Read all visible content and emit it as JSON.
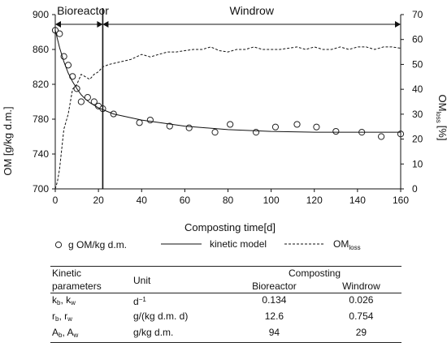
{
  "chart_data": {
    "type": "line",
    "xlabel": "Composting time[d]",
    "ylabel": "OM [g/kg d.m.]",
    "y2label_main": "OM",
    "y2label_sub": "loss",
    "y2label_unit": "[%]",
    "xlim": [
      0,
      160
    ],
    "ylim": [
      700,
      900
    ],
    "y2lim": [
      0,
      70
    ],
    "xticks": [
      "0",
      "20",
      "40",
      "60",
      "80",
      "100",
      "120",
      "140",
      "160"
    ],
    "yticks": [
      "700",
      "740",
      "780",
      "820",
      "860",
      "900"
    ],
    "y2ticks": [
      "0",
      "10",
      "20",
      "30",
      "40",
      "50",
      "60",
      "70"
    ],
    "phase_split_day": 22,
    "phases": [
      {
        "label": "Bioreactor",
        "from": 0,
        "to": 22
      },
      {
        "label": "Windrow",
        "from": 22,
        "to": 160
      }
    ],
    "series": [
      {
        "name": "g OM/kg d.m.",
        "marker": "open-circle",
        "axis": "left",
        "x": [
          0,
          2,
          4,
          6,
          8,
          10,
          12,
          15,
          18,
          20,
          22,
          27,
          39,
          44,
          53,
          62,
          74,
          81,
          93,
          102,
          112,
          121,
          130,
          142,
          151,
          160
        ],
        "y": [
          882,
          878,
          852,
          842,
          829,
          815,
          800,
          805,
          800,
          795,
          792,
          786,
          776,
          779,
          772,
          770,
          765,
          774,
          765,
          771,
          774,
          771,
          766,
          765,
          760,
          763
        ]
      },
      {
        "name": "kinetic model",
        "style": "solid",
        "axis": "left",
        "x": [
          0,
          2,
          4,
          6,
          8,
          10,
          12,
          14,
          16,
          18,
          20,
          22,
          27,
          40,
          60,
          80,
          100,
          120,
          140,
          160
        ],
        "y": [
          882,
          862,
          846,
          833,
          823,
          815,
          808,
          803,
          799,
          796,
          793,
          791,
          786,
          779,
          772,
          768,
          766,
          765,
          765,
          765
        ]
      },
      {
        "name": "OMloss",
        "style": "dashed",
        "axis": "right",
        "x": [
          0,
          1,
          2,
          4,
          6,
          8,
          10,
          12,
          14,
          16,
          18,
          20,
          22,
          25,
          30,
          35,
          40,
          44,
          48,
          52,
          56,
          60,
          64,
          68,
          72,
          76,
          80,
          84,
          88,
          92,
          96,
          100,
          104,
          108,
          112,
          116,
          120,
          124,
          128,
          132,
          136,
          140,
          144,
          148,
          152,
          156,
          160
        ],
        "y": [
          0,
          3,
          8,
          24,
          30,
          40,
          42,
          46,
          45,
          44,
          46,
          47,
          49,
          50,
          51,
          52,
          54,
          53,
          54,
          55,
          55,
          55.5,
          56,
          56,
          57,
          55.5,
          55,
          56,
          56,
          57,
          56,
          56,
          56,
          56.5,
          57,
          56,
          57,
          56,
          56,
          57,
          56,
          57,
          57,
          56,
          57,
          57,
          56.5
        ]
      }
    ],
    "legend": {
      "position": "bottom",
      "items": [
        {
          "label": "g OM/kg d.m.",
          "marker": "open-circle"
        },
        {
          "label": "kinetic model",
          "style": "solid"
        },
        {
          "main": "OM",
          "sub": "loss",
          "style": "dashed"
        }
      ]
    }
  },
  "table": {
    "header_group": "Composting",
    "col_param_1": "Kinetic",
    "col_param_2": "parameters",
    "col_unit": "Unit",
    "col_bioreactor": "Bioreactor",
    "col_windrow": "Windrow",
    "rows": [
      {
        "p1": "k",
        "p1s": "b",
        "sep": ", ",
        "p2": "k",
        "p2s": "w",
        "unit_main": "d",
        "unit_sup": "−1",
        "bioreactor": "0.134",
        "windrow": "0.026"
      },
      {
        "p1": "r",
        "p1s": "b",
        "sep": ", ",
        "p2": "r",
        "p2s": "w",
        "unit_main": "g/(kg d.m. d)",
        "unit_sup": "",
        "bioreactor": "12.6",
        "windrow": "0.754"
      },
      {
        "p1": "A",
        "p1s": "b",
        "sep": ", ",
        "p2": "A",
        "p2s": "w",
        "unit_main": "g/kg d.m.",
        "unit_sup": "",
        "bioreactor": "94",
        "windrow": "29"
      }
    ]
  }
}
